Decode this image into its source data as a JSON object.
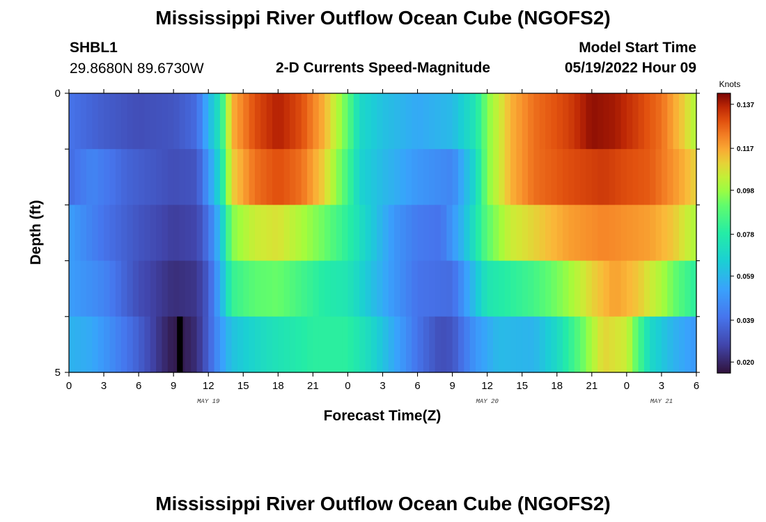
{
  "titles": {
    "top": "Mississippi River Outflow Ocean Cube (NGOFS2)",
    "bottom": "Mississippi River Outflow Ocean Cube (NGOFS2)"
  },
  "station": {
    "id": "SHBL1",
    "coords": "29.8680N  89.6730W"
  },
  "subtitle": "2-D Currents Speed-Magnitude",
  "model": {
    "label": "Model Start Time",
    "time": "05/19/2022 Hour 09"
  },
  "chart_data": {
    "type": "heatmap",
    "title": "2-D Currents Speed-Magnitude",
    "xlabel": "Forecast Time(Z)",
    "ylabel": "Depth (ft)",
    "x_tick_labels": [
      "0",
      "3",
      "6",
      "9",
      "12",
      "15",
      "18",
      "21",
      "0",
      "3",
      "6",
      "9",
      "12",
      "15",
      "18",
      "21",
      "0",
      "3",
      "6"
    ],
    "x_range_hours": [
      0,
      54
    ],
    "date_labels": [
      {
        "text": "MAY 19",
        "hour": 12
      },
      {
        "text": "MAY 20",
        "hour": 36
      },
      {
        "text": "MAY 21",
        "hour": 51
      }
    ],
    "y_tick_labels": [
      "0",
      "5"
    ],
    "y_range": [
      0,
      5
    ],
    "colorbar": {
      "unit": "Knots",
      "labels": [
        "0.137",
        "0.117",
        "0.098",
        "0.078",
        "0.059",
        "0.039",
        "0.020"
      ],
      "min": 0.015,
      "max": 0.142
    },
    "layers": 5,
    "hours_per_column": 0.5,
    "key_points": [
      {
        "layer": 0,
        "points": [
          [
            0,
            0.04
          ],
          [
            3,
            0.034
          ],
          [
            6,
            0.03
          ],
          [
            9,
            0.032
          ],
          [
            11,
            0.038
          ],
          [
            12,
            0.058
          ],
          [
            13,
            0.075
          ],
          [
            14,
            0.115
          ],
          [
            16,
            0.13
          ],
          [
            18,
            0.137
          ],
          [
            20,
            0.13
          ],
          [
            22,
            0.115
          ],
          [
            24,
            0.09
          ],
          [
            25,
            0.07
          ],
          [
            27,
            0.062
          ],
          [
            30,
            0.055
          ],
          [
            33,
            0.06
          ],
          [
            35,
            0.075
          ],
          [
            36,
            0.095
          ],
          [
            38,
            0.115
          ],
          [
            40,
            0.125
          ],
          [
            43,
            0.132
          ],
          [
            45,
            0.14
          ],
          [
            47,
            0.138
          ],
          [
            49,
            0.132
          ],
          [
            51,
            0.125
          ],
          [
            53,
            0.11
          ],
          [
            54,
            0.1
          ]
        ]
      },
      {
        "layer": 1,
        "points": [
          [
            0,
            0.038
          ],
          [
            2,
            0.045
          ],
          [
            5,
            0.036
          ],
          [
            9,
            0.03
          ],
          [
            11,
            0.032
          ],
          [
            12,
            0.05
          ],
          [
            13,
            0.07
          ],
          [
            14,
            0.11
          ],
          [
            16,
            0.125
          ],
          [
            18,
            0.13
          ],
          [
            20,
            0.125
          ],
          [
            22,
            0.11
          ],
          [
            24,
            0.085
          ],
          [
            25,
            0.068
          ],
          [
            27,
            0.06
          ],
          [
            30,
            0.05
          ],
          [
            33,
            0.045
          ],
          [
            35,
            0.07
          ],
          [
            36,
            0.095
          ],
          [
            38,
            0.115
          ],
          [
            40,
            0.125
          ],
          [
            43,
            0.13
          ],
          [
            46,
            0.133
          ],
          [
            48,
            0.13
          ],
          [
            50,
            0.128
          ],
          [
            52,
            0.12
          ],
          [
            54,
            0.11
          ]
        ]
      },
      {
        "layer": 2,
        "points": [
          [
            0,
            0.052
          ],
          [
            3,
            0.04
          ],
          [
            6,
            0.032
          ],
          [
            9,
            0.026
          ],
          [
            11,
            0.028
          ],
          [
            12,
            0.04
          ],
          [
            13,
            0.06
          ],
          [
            14,
            0.095
          ],
          [
            16,
            0.105
          ],
          [
            18,
            0.108
          ],
          [
            20,
            0.1
          ],
          [
            22,
            0.092
          ],
          [
            24,
            0.08
          ],
          [
            26,
            0.065
          ],
          [
            28,
            0.05
          ],
          [
            30,
            0.042
          ],
          [
            32,
            0.04
          ],
          [
            34,
            0.06
          ],
          [
            36,
            0.09
          ],
          [
            38,
            0.105
          ],
          [
            40,
            0.11
          ],
          [
            43,
            0.118
          ],
          [
            46,
            0.122
          ],
          [
            48,
            0.12
          ],
          [
            50,
            0.118
          ],
          [
            52,
            0.112
          ],
          [
            54,
            0.1
          ]
        ]
      },
      {
        "layer": 3,
        "points": [
          [
            0,
            0.052
          ],
          [
            3,
            0.045
          ],
          [
            6,
            0.03
          ],
          [
            9,
            0.022
          ],
          [
            11,
            0.024
          ],
          [
            12,
            0.034
          ],
          [
            13,
            0.055
          ],
          [
            14,
            0.082
          ],
          [
            16,
            0.09
          ],
          [
            18,
            0.092
          ],
          [
            20,
            0.085
          ],
          [
            22,
            0.078
          ],
          [
            24,
            0.075
          ],
          [
            26,
            0.062
          ],
          [
            28,
            0.05
          ],
          [
            30,
            0.04
          ],
          [
            33,
            0.038
          ],
          [
            34,
            0.05
          ],
          [
            36,
            0.075
          ],
          [
            38,
            0.08
          ],
          [
            40,
            0.085
          ],
          [
            43,
            0.098
          ],
          [
            45,
            0.11
          ],
          [
            47,
            0.118
          ],
          [
            49,
            0.112
          ],
          [
            51,
            0.1
          ],
          [
            53,
            0.085
          ],
          [
            54,
            0.08
          ]
        ]
      },
      {
        "layer": 4,
        "points": [
          [
            0,
            0.058
          ],
          [
            2,
            0.055
          ],
          [
            4,
            0.045
          ],
          [
            6,
            0.035
          ],
          [
            8,
            0.022
          ],
          [
            9,
            0.017
          ],
          [
            10,
            0.018
          ],
          [
            11,
            0.022
          ],
          [
            12,
            0.035
          ],
          [
            13,
            0.05
          ],
          [
            14,
            0.062
          ],
          [
            17,
            0.072
          ],
          [
            21,
            0.08
          ],
          [
            24,
            0.08
          ],
          [
            26,
            0.07
          ],
          [
            28,
            0.055
          ],
          [
            30,
            0.04
          ],
          [
            32,
            0.03
          ],
          [
            33,
            0.032
          ],
          [
            35,
            0.05
          ],
          [
            37,
            0.06
          ],
          [
            40,
            0.058
          ],
          [
            42,
            0.07
          ],
          [
            44,
            0.09
          ],
          [
            46,
            0.11
          ],
          [
            48,
            0.105
          ],
          [
            50,
            0.07
          ],
          [
            52,
            0.058
          ],
          [
            54,
            0.05
          ]
        ]
      }
    ],
    "notes": "Values (knots) sampled along forecast hours for each of 5 depth layers; a small black no-data patch at layer 4 around hour 9.5."
  }
}
